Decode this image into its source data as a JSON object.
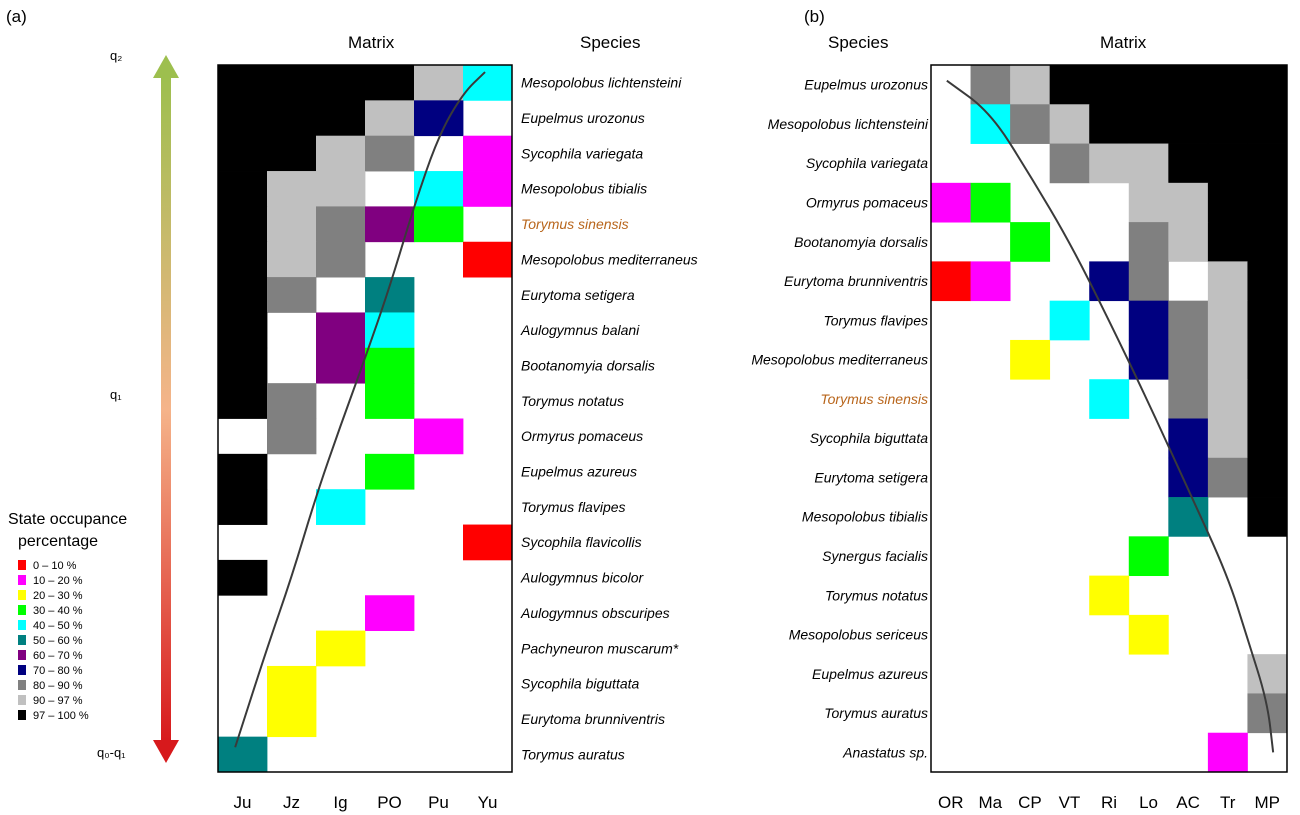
{
  "panel_a": {
    "label": "(a)",
    "matrix_title": "Matrix",
    "species_title": "Species",
    "gradient_top": "q₂",
    "gradient_mid": "q₁",
    "gradient_bottom": "q₀-q₁"
  },
  "panel_b": {
    "label": "(b)",
    "matrix_title": "Matrix",
    "species_title": "Species"
  },
  "legend": {
    "title_line1": "State occupance",
    "title_line2": "percentage",
    "items": [
      {
        "label": "0 – 10 %",
        "color": "#ff0000"
      },
      {
        "label": "10 – 20 %",
        "color": "#ff00ff"
      },
      {
        "label": "20 – 30 %",
        "color": "#ffff00"
      },
      {
        "label": "30 – 40 %",
        "color": "#00ff00"
      },
      {
        "label": "40 – 50 %",
        "color": "#00ffff"
      },
      {
        "label": "50 – 60 %",
        "color": "#008080"
      },
      {
        "label": "60 – 70 %",
        "color": "#800080"
      },
      {
        "label": "70 – 80 %",
        "color": "#000080"
      },
      {
        "label": "80 – 90 %",
        "color": "#808080"
      },
      {
        "label": "90 – 97 %",
        "color": "#c0c0c0"
      },
      {
        "label": "97 – 100 %",
        "color": "#000000"
      }
    ]
  },
  "chart_data": [
    {
      "type": "heatmap",
      "title": "",
      "categories": [
        "Ju",
        "Jz",
        "Ig",
        "PO",
        "Pu",
        "Yu"
      ],
      "rows": [
        "Mesopolobus lichtensteini",
        "Eupelmus urozonus",
        "Sycophila variegata",
        "Mesopolobus tibialis",
        "Torymus sinensis",
        "Mesopolobus mediterraneus",
        "Eurytoma setigera",
        "Aulogymnus balani",
        "Bootanomyia dorsalis",
        "Torymus notatus",
        "Ormyrus pomaceus",
        "Eupelmus azureus",
        "Torymus flavipes",
        "Sycophila flavicollis",
        "Aulogymnus bicolor",
        "Aulogymnus obscuripes",
        "Pachyneuron muscarum*",
        "Sycophila biguttata",
        "Eurytoma brunniventris",
        "Torymus auratus"
      ],
      "highlight_row": "Torymus sinensis",
      "classes": [
        "0 – 10 %",
        "10 – 20 %",
        "20 – 30 %",
        "30 – 40 %",
        "40 – 50 %",
        "50 – 60 %",
        "60 – 70 %",
        "70 – 80 %",
        "80 – 90 %",
        "90 – 97 %",
        "97 – 100 %"
      ],
      "cells": [
        [
          10,
          10,
          10,
          10,
          9,
          4
        ],
        [
          10,
          10,
          10,
          9,
          7,
          -1
        ],
        [
          10,
          10,
          9,
          8,
          -1,
          1
        ],
        [
          10,
          9,
          9,
          -1,
          4,
          1
        ],
        [
          10,
          9,
          8,
          6,
          3,
          -1
        ],
        [
          10,
          9,
          8,
          -1,
          -1,
          0
        ],
        [
          10,
          8,
          -1,
          5,
          -1,
          -1
        ],
        [
          10,
          -1,
          6,
          4,
          -1,
          -1
        ],
        [
          10,
          -1,
          6,
          3,
          -1,
          -1
        ],
        [
          10,
          8,
          -1,
          3,
          -1,
          -1
        ],
        [
          -1,
          8,
          -1,
          -1,
          1,
          -1
        ],
        [
          10,
          -1,
          -1,
          3,
          -1,
          -1
        ],
        [
          10,
          -1,
          4,
          -1,
          -1,
          -1
        ],
        [
          -1,
          -1,
          -1,
          -1,
          -1,
          0
        ],
        [
          10,
          -1,
          -1,
          -1,
          -1,
          -1
        ],
        [
          -1,
          -1,
          -1,
          1,
          -1,
          -1
        ],
        [
          -1,
          -1,
          2,
          -1,
          -1,
          -1
        ],
        [
          -1,
          2,
          -1,
          -1,
          -1,
          -1
        ],
        [
          -1,
          2,
          -1,
          -1,
          -1,
          -1
        ],
        [
          5,
          -1,
          -1,
          -1,
          -1,
          -1
        ]
      ],
      "curve": [
        [
          0.35,
          19.3
        ],
        [
          1.0,
          16.5
        ],
        [
          1.5,
          14.5
        ],
        [
          2.0,
          12.2
        ],
        [
          2.5,
          10.2
        ],
        [
          3.0,
          8.3
        ],
        [
          3.5,
          6.3
        ],
        [
          4.0,
          4.0
        ],
        [
          4.5,
          2.0
        ],
        [
          5.0,
          0.8
        ],
        [
          5.45,
          0.2
        ]
      ]
    },
    {
      "type": "heatmap",
      "title": "",
      "categories": [
        "OR",
        "Ma",
        "CP",
        "VT",
        "Ri",
        "Lo",
        "AC",
        "Tr",
        "MP"
      ],
      "rows": [
        "Eupelmus urozonus",
        "Mesopolobus lichtensteini",
        "Sycophila variegata",
        "Ormyrus pomaceus",
        "Bootanomyia dorsalis",
        "Eurytoma brunniventris",
        "Torymus flavipes",
        "Mesopolobus mediterraneus",
        "Torymus sinensis",
        "Sycophila biguttata",
        "Eurytoma setigera",
        "Mesopolobus tibialis",
        "Synergus facialis",
        "Torymus notatus",
        "Mesopolobus sericeus",
        "Eupelmus azureus",
        "Torymus auratus",
        "Anastatus sp."
      ],
      "highlight_row": "Torymus sinensis",
      "classes": [
        "0 – 10 %",
        "10 – 20 %",
        "20 – 30 %",
        "30 – 40 %",
        "40 – 50 %",
        "50 – 60 %",
        "60 – 70 %",
        "70 – 80 %",
        "80 – 90 %",
        "90 – 97 %",
        "97 – 100 %"
      ],
      "cells": [
        [
          -1,
          8,
          9,
          10,
          10,
          10,
          10,
          10,
          10
        ],
        [
          -1,
          4,
          8,
          9,
          10,
          10,
          10,
          10,
          10
        ],
        [
          -1,
          -1,
          -1,
          8,
          9,
          9,
          10,
          10,
          10
        ],
        [
          1,
          3,
          -1,
          -1,
          -1,
          9,
          9,
          10,
          10
        ],
        [
          -1,
          -1,
          3,
          -1,
          -1,
          8,
          9,
          10,
          10
        ],
        [
          0,
          1,
          -1,
          -1,
          7,
          8,
          -1,
          9,
          10
        ],
        [
          -1,
          -1,
          -1,
          4,
          -1,
          7,
          8,
          9,
          10
        ],
        [
          -1,
          -1,
          2,
          -1,
          -1,
          7,
          8,
          9,
          10
        ],
        [
          -1,
          -1,
          -1,
          -1,
          4,
          -1,
          8,
          9,
          10
        ],
        [
          -1,
          -1,
          -1,
          -1,
          -1,
          -1,
          7,
          9,
          10
        ],
        [
          -1,
          -1,
          -1,
          -1,
          -1,
          -1,
          7,
          8,
          10
        ],
        [
          -1,
          -1,
          -1,
          -1,
          -1,
          -1,
          5,
          -1,
          10
        ],
        [
          -1,
          -1,
          -1,
          -1,
          -1,
          3,
          -1,
          -1,
          -1
        ],
        [
          -1,
          -1,
          -1,
          -1,
          2,
          -1,
          -1,
          -1,
          -1
        ],
        [
          -1,
          -1,
          -1,
          -1,
          -1,
          2,
          -1,
          -1,
          -1
        ],
        [
          -1,
          -1,
          -1,
          -1,
          -1,
          -1,
          -1,
          -1,
          9
        ],
        [
          -1,
          -1,
          -1,
          -1,
          -1,
          -1,
          -1,
          -1,
          8
        ],
        [
          -1,
          -1,
          -1,
          -1,
          -1,
          -1,
          -1,
          1,
          -1
        ]
      ],
      "curve": [
        [
          0.4,
          0.4
        ],
        [
          1.5,
          1.2
        ],
        [
          2.5,
          2.8
        ],
        [
          3.5,
          4.5
        ],
        [
          4.5,
          6.5
        ],
        [
          5.5,
          8.6
        ],
        [
          6.5,
          10.8
        ],
        [
          7.5,
          13.0
        ],
        [
          8.0,
          14.6
        ],
        [
          8.5,
          16.2
        ],
        [
          8.65,
          17.5
        ]
      ]
    }
  ]
}
